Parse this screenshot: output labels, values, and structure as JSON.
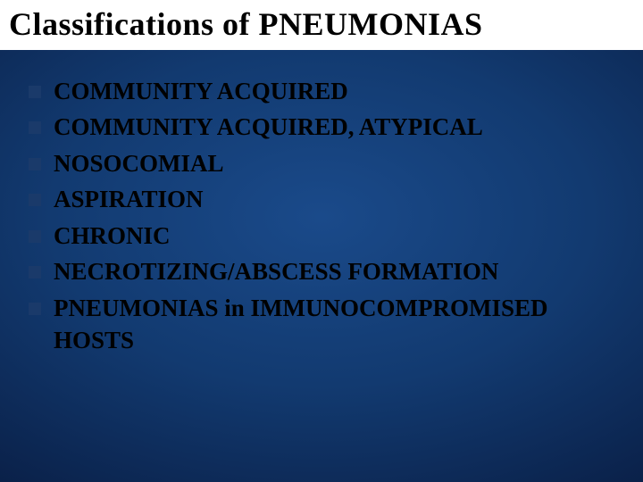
{
  "slide": {
    "title": "Classifications of PNEUMONIAS",
    "title_color": "#000000",
    "title_bg": "#ffffff",
    "title_fontsize": 36,
    "body_text_color": "#000000",
    "body_fontsize": 27,
    "bullet_color": "#1a3a6a",
    "bullet_size": 14,
    "background_gradient": {
      "type": "radial",
      "stops": [
        "#1a4a8a",
        "#123a70",
        "#0a2048",
        "#050f28"
      ]
    },
    "items": [
      {
        "text": "COMMUNITY ACQUIRED"
      },
      {
        "text": "COMMUNITY ACQUIRED, ATYPICAL"
      },
      {
        "text": "NOSOCOMIAL"
      },
      {
        "text": "ASPIRATION"
      },
      {
        "text": "CHRONIC"
      },
      {
        "text": "NECROTIZING/ABSCESS FORMATION"
      },
      {
        "text": "PNEUMONIAS in IMMUNOCOMPROMISED HOSTS"
      }
    ]
  }
}
